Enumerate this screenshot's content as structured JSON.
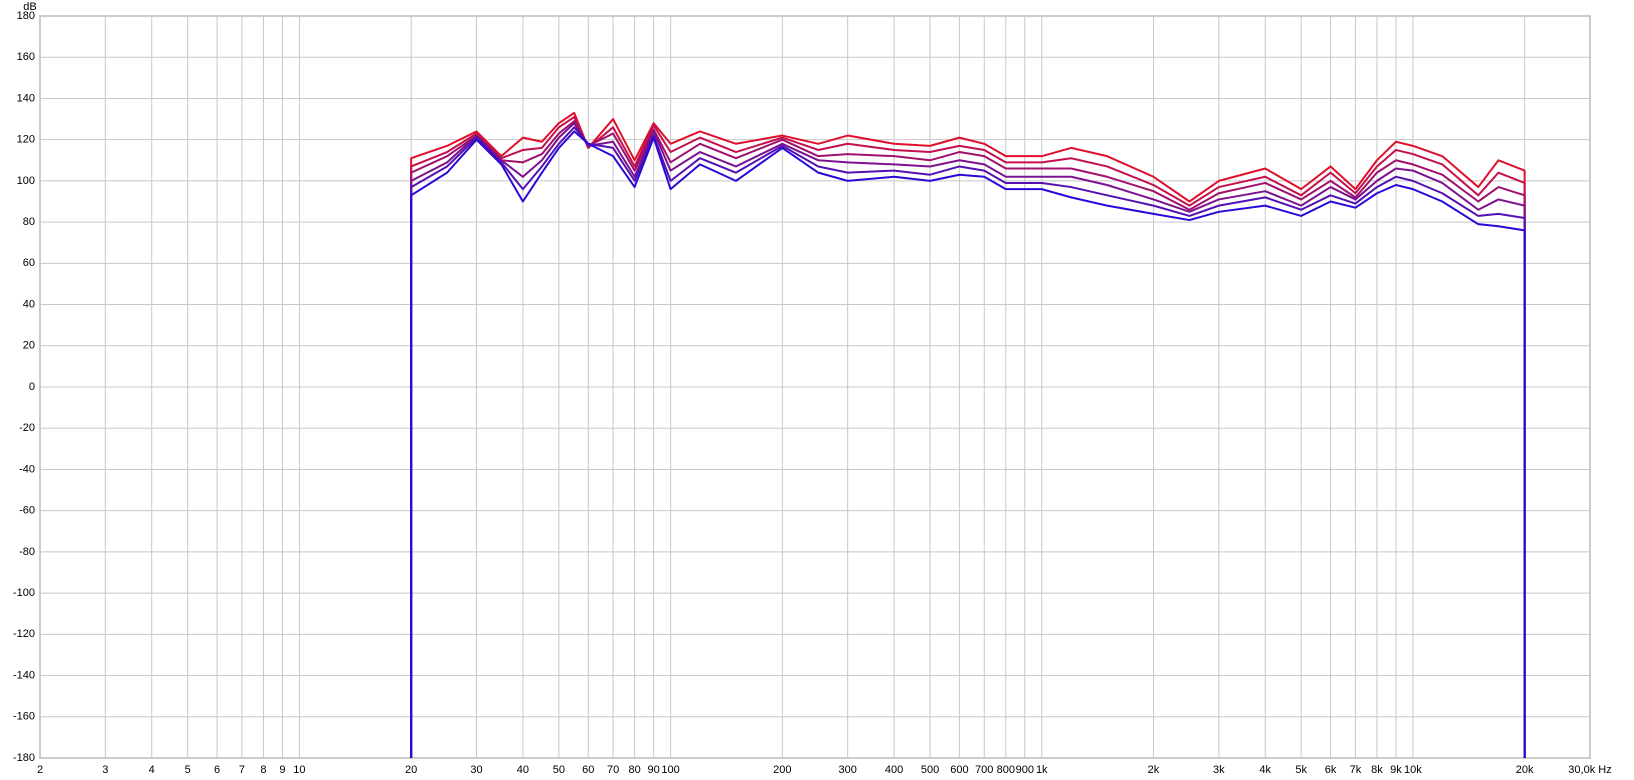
{
  "chart_data": {
    "type": "line",
    "y_unit": "dB",
    "xscale": "log",
    "grid": true,
    "xlim": [
      2,
      30000
    ],
    "ylim": [
      -180,
      180
    ],
    "xticks": [
      2,
      3,
      4,
      5,
      6,
      7,
      8,
      9,
      10,
      20,
      30,
      40,
      50,
      60,
      70,
      80,
      90,
      100,
      200,
      300,
      400,
      500,
      600,
      700,
      800,
      900,
      {
        "value": 1000,
        "label": "1k"
      },
      {
        "value": 2000,
        "label": "2k"
      },
      {
        "value": 3000,
        "label": "3k"
      },
      {
        "value": 4000,
        "label": "4k"
      },
      {
        "value": 5000,
        "label": "5k"
      },
      {
        "value": 6000,
        "label": "6k"
      },
      {
        "value": 7000,
        "label": "7k"
      },
      {
        "value": 8000,
        "label": "8k"
      },
      {
        "value": 9000,
        "label": "9k"
      },
      {
        "value": 10000,
        "label": "10k"
      },
      {
        "value": 20000,
        "label": "20k"
      },
      {
        "value": 30000,
        "label": "30,0k Hz"
      }
    ],
    "yticks": [
      -180,
      -160,
      -140,
      -120,
      -100,
      -80,
      -60,
      -40,
      -20,
      0,
      20,
      40,
      60,
      80,
      100,
      120,
      140,
      160,
      180
    ],
    "x": [
      20,
      20,
      25,
      30,
      35,
      40,
      45,
      50,
      55,
      60,
      70,
      80,
      90,
      100,
      120,
      150,
      200,
      250,
      300,
      400,
      500,
      600,
      700,
      800,
      1000,
      1200,
      1500,
      2000,
      2500,
      3000,
      4000,
      5000,
      6000,
      7000,
      8000,
      9000,
      10000,
      12000,
      15000,
      17000,
      20000,
      20000
    ],
    "series": [
      {
        "color": "#e0102a",
        "values": [
          -180,
          111,
          117,
          124,
          112,
          121,
          119,
          128,
          133,
          116,
          130,
          110,
          128,
          118,
          124,
          118,
          122,
          118,
          122,
          118,
          117,
          121,
          118,
          112,
          112,
          116,
          112,
          102,
          90,
          100,
          106,
          96,
          107,
          96,
          110,
          119,
          117,
          112,
          97,
          110,
          105,
          -180
        ]
      },
      {
        "color": "#c4104c",
        "values": [
          -180,
          107,
          114,
          123,
          111,
          115,
          116,
          126,
          131,
          116,
          126,
          107,
          127,
          114,
          121,
          114,
          121,
          115,
          118,
          115,
          114,
          117,
          115,
          109,
          109,
          111,
          107,
          98,
          88,
          97,
          102,
          93,
          104,
          94,
          107,
          115,
          113,
          108,
          93,
          104,
          99,
          -180
        ]
      },
      {
        "color": "#a0106e",
        "values": [
          -180,
          104,
          112,
          122,
          110,
          109,
          113,
          123,
          129,
          117,
          123,
          105,
          125,
          109,
          118,
          111,
          120,
          112,
          113,
          112,
          110,
          114,
          112,
          106,
          106,
          106,
          102,
          95,
          86,
          94,
          99,
          91,
          100,
          92,
          104,
          110,
          108,
          103,
          90,
          97,
          93,
          -180
        ]
      },
      {
        "color": "#7c128e",
        "values": [
          -180,
          100,
          109,
          122,
          110,
          102,
          110,
          121,
          128,
          117,
          119,
          102,
          124,
          105,
          114,
          107,
          118,
          110,
          109,
          108,
          107,
          110,
          108,
          102,
          102,
          102,
          98,
          91,
          85,
          91,
          95,
          88,
          97,
          91,
          100,
          106,
          105,
          99,
          86,
          91,
          88,
          -180
        ]
      },
      {
        "color": "#5410b2",
        "values": [
          -180,
          97,
          107,
          121,
          109,
          96,
          107,
          118,
          126,
          118,
          116,
          100,
          122,
          100,
          111,
          104,
          117,
          107,
          104,
          105,
          103,
          107,
          105,
          99,
          99,
          97,
          93,
          88,
          83,
          88,
          92,
          86,
          93,
          89,
          97,
          102,
          100,
          94,
          83,
          84,
          82,
          -180
        ]
      },
      {
        "color": "#2a08d8",
        "values": [
          -180,
          93,
          104,
          120,
          108,
          90,
          104,
          116,
          124,
          118,
          112,
          97,
          121,
          96,
          108,
          100,
          116,
          104,
          100,
          102,
          100,
          103,
          102,
          96,
          96,
          92,
          88,
          84,
          81,
          85,
          88,
          83,
          90,
          87,
          94,
          98,
          96,
          90,
          79,
          78,
          76,
          -180
        ]
      }
    ]
  }
}
